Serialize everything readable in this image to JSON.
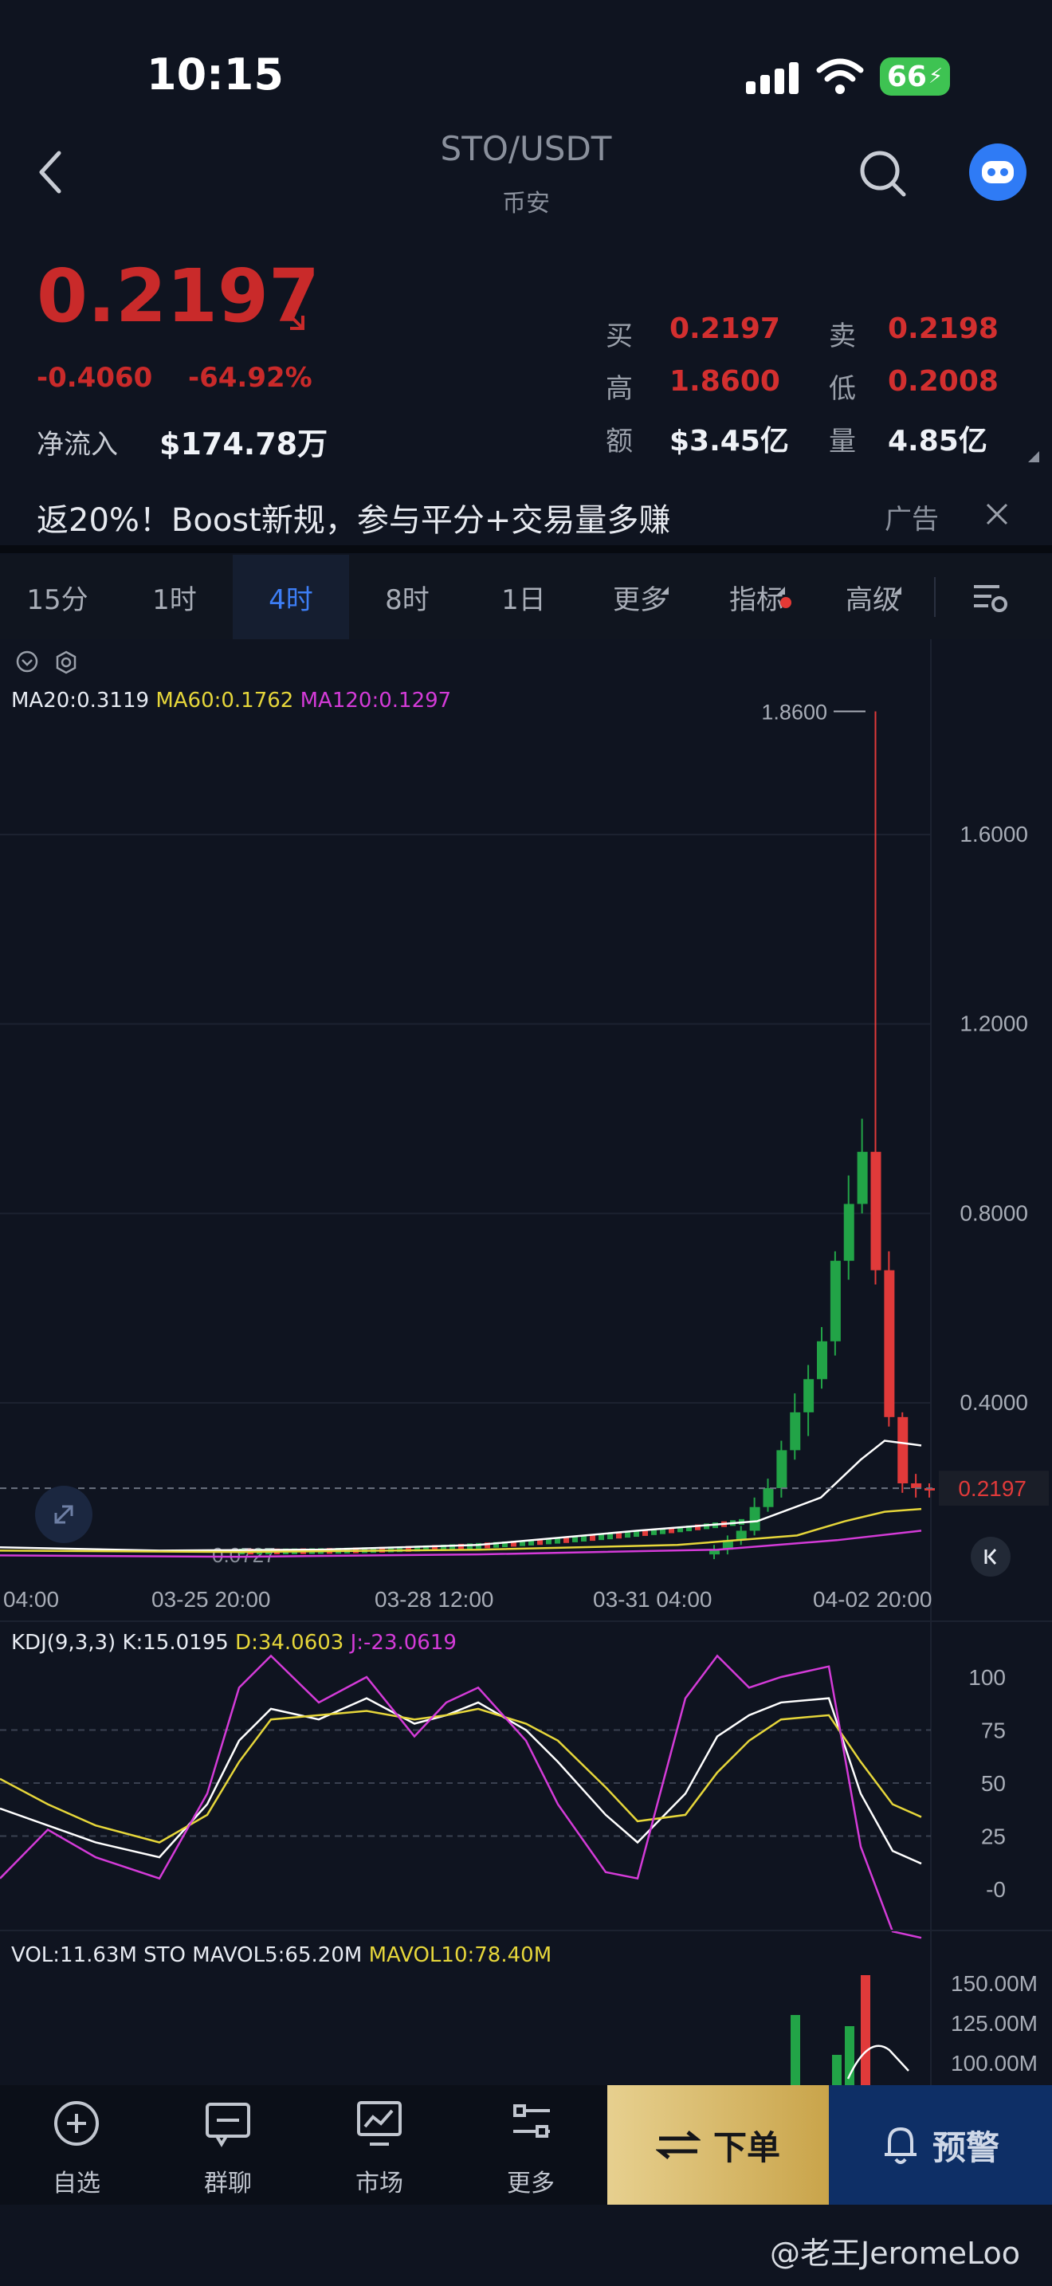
{
  "status_bar": {
    "time": "10:15",
    "battery": "66"
  },
  "header": {
    "pair": "STO/USDT",
    "exchange": "币安"
  },
  "ticker": {
    "last_price": "0.2197",
    "change": "-0.4060",
    "change_pct": "-64.92%",
    "net_inflow_label": "净流入",
    "net_inflow_value": "$174.78万",
    "buy_label": "买",
    "buy": "0.2197",
    "sell_label": "卖",
    "sell": "0.2198",
    "high_label": "高",
    "high": "1.8600",
    "low_label": "低",
    "low": "0.2008",
    "amount_label": "额",
    "amount": "$3.45亿",
    "volume_label": "量",
    "volume": "4.85亿"
  },
  "ad": {
    "text": "返20%！Boost新规，参与平分+交易量多赚",
    "tag": "广告"
  },
  "tabs": [
    "15分",
    "1时",
    "4时",
    "8时",
    "1日",
    "更多",
    "指标",
    "高级"
  ],
  "active_tab": "4时",
  "main_chart": {
    "ma20": "MA20:0.3119",
    "ma60": "MA60:0.1762",
    "ma120": "MA120:0.1297",
    "high_marker": "1.8600",
    "low_marker": "0.0727",
    "current_price_tag": "0.2197",
    "y_ticks": [
      "1.6000",
      "1.2000",
      "0.8000",
      "0.4000"
    ],
    "x_ticks": [
      "04:00",
      "03-25 20:00",
      "03-28 12:00",
      "03-31 04:00",
      "04-02 20:00"
    ]
  },
  "kdj": {
    "title": "KDJ(9,3,3)",
    "k": "K:15.0195",
    "d": "D:34.0603",
    "j": "J:-23.0619",
    "y_ticks": [
      "100",
      "75",
      "50",
      "25",
      "-0"
    ]
  },
  "vol": {
    "vol": "VOL:11.63M STO",
    "mavol5": "MAVOL5:65.20M",
    "mavol10": "MAVOL10:78.40M",
    "y_ticks": [
      "150.00M",
      "125.00M",
      "100.00M"
    ]
  },
  "bottom_nav": [
    {
      "label": "自选",
      "icon": "plus-circle-icon"
    },
    {
      "label": "群聊",
      "icon": "chat-icon"
    },
    {
      "label": "市场",
      "icon": "market-chart-icon"
    },
    {
      "label": "更多",
      "icon": "more-sliders-icon"
    }
  ],
  "actions": {
    "order": "下单",
    "alert": "预警"
  },
  "watermark": "@老王JeromeLoo",
  "colors": {
    "up": "#22a447",
    "down": "#e03a3a",
    "accent": "#3d7ef5",
    "ma20": "#ffffff",
    "ma60": "#e6d63a",
    "ma120": "#d43bd8"
  },
  "chart_data": {
    "type": "candlestick",
    "x_ticks": [
      "04:00",
      "03-25 20:00",
      "03-28 12:00",
      "03-31 04:00",
      "04-02 20:00"
    ],
    "ylim": [
      0,
      1.9
    ],
    "y_ticks": [
      0.4,
      0.8,
      1.2,
      1.6
    ],
    "candles_recent": [
      {
        "o": 0.08,
        "h": 0.1,
        "l": 0.07,
        "c": 0.09
      },
      {
        "o": 0.09,
        "h": 0.12,
        "l": 0.08,
        "c": 0.11
      },
      {
        "o": 0.11,
        "h": 0.14,
        "l": 0.1,
        "c": 0.13
      },
      {
        "o": 0.13,
        "h": 0.2,
        "l": 0.12,
        "c": 0.18
      },
      {
        "o": 0.18,
        "h": 0.24,
        "l": 0.17,
        "c": 0.22
      },
      {
        "o": 0.22,
        "h": 0.32,
        "l": 0.2,
        "c": 0.3
      },
      {
        "o": 0.3,
        "h": 0.42,
        "l": 0.28,
        "c": 0.38
      },
      {
        "o": 0.38,
        "h": 0.48,
        "l": 0.33,
        "c": 0.45
      },
      {
        "o": 0.45,
        "h": 0.56,
        "l": 0.43,
        "c": 0.53
      },
      {
        "o": 0.53,
        "h": 0.72,
        "l": 0.5,
        "c": 0.7
      },
      {
        "o": 0.7,
        "h": 0.88,
        "l": 0.66,
        "c": 0.82
      },
      {
        "o": 0.82,
        "h": 1.0,
        "l": 0.8,
        "c": 0.93
      },
      {
        "o": 0.93,
        "h": 1.86,
        "l": 0.65,
        "c": 0.68
      },
      {
        "o": 0.68,
        "h": 0.72,
        "l": 0.35,
        "c": 0.37
      },
      {
        "o": 0.37,
        "h": 0.38,
        "l": 0.21,
        "c": 0.23
      },
      {
        "o": 0.23,
        "h": 0.25,
        "l": 0.2,
        "c": 0.22
      },
      {
        "o": 0.22,
        "h": 0.23,
        "l": 0.2,
        "c": 0.2197
      }
    ]
  }
}
